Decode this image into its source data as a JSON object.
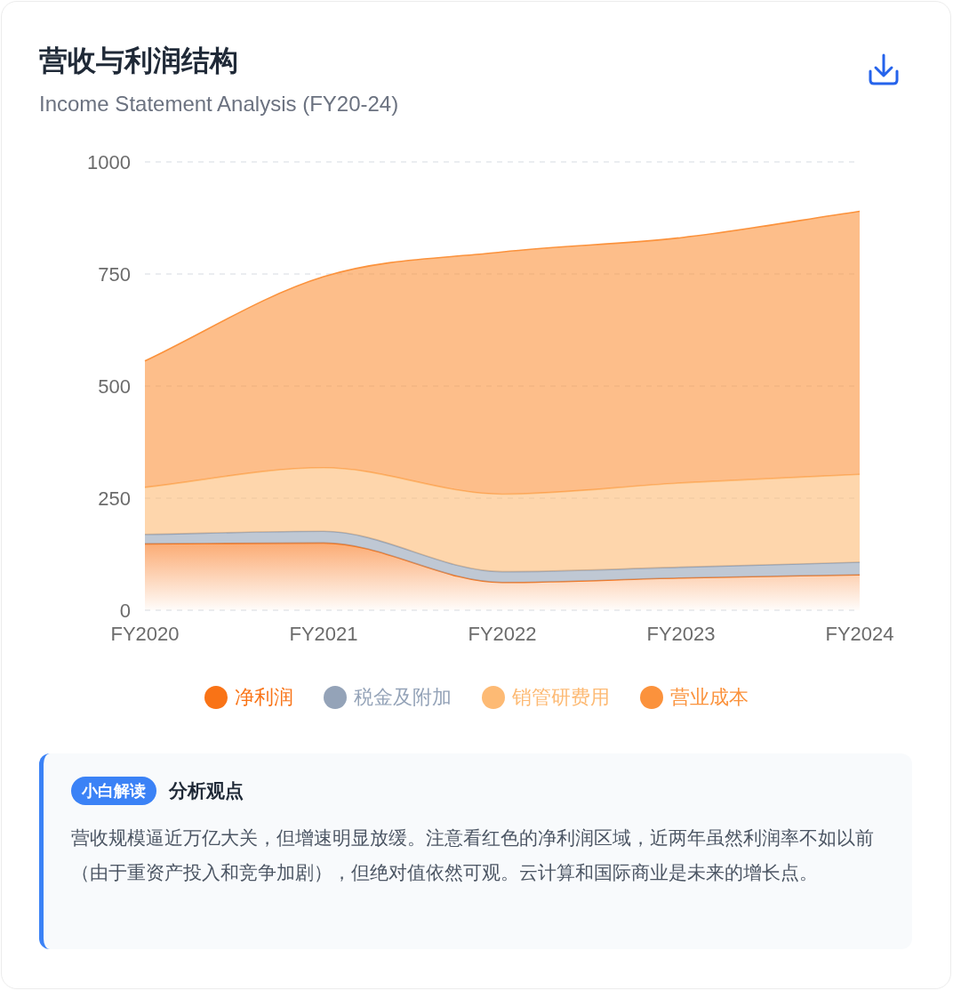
{
  "chart_data": {
    "type": "area",
    "stacked": true,
    "title": "营收与利润结构",
    "subtitle": "Income Statement Analysis (FY20-24)",
    "categories": [
      "FY2020",
      "FY2021",
      "FY2022",
      "FY2023",
      "FY2024"
    ],
    "series": [
      {
        "name": "净利润",
        "color": "#f97316",
        "values": [
          148,
          150,
          62,
          72,
          79
        ]
      },
      {
        "name": "税金及附加",
        "color": "#94a3b8",
        "values": [
          21,
          26,
          24,
          24,
          28
        ]
      },
      {
        "name": "销管研费用",
        "color": "#fdba74",
        "values": [
          105,
          142,
          173,
          188,
          196
        ]
      },
      {
        "name": "营业成本",
        "color": "#fb923c",
        "values": [
          282,
          426,
          540,
          547,
          587
        ]
      }
    ],
    "ylim": [
      0,
      1000
    ],
    "yticks": [
      0,
      250,
      500,
      750,
      1000
    ],
    "grid": "y",
    "legend": "bottom",
    "annotations": [
      "小白解读",
      "分析观点",
      "营收规模逼近万亿大关，但增速明显放缓。注意看红色的净利润区域，近两年虽然利润率不如以前（由于重资产投入和竞争加剧），但绝对值依然可观。云计算和国际商业是未来的增长点。"
    ]
  }
}
